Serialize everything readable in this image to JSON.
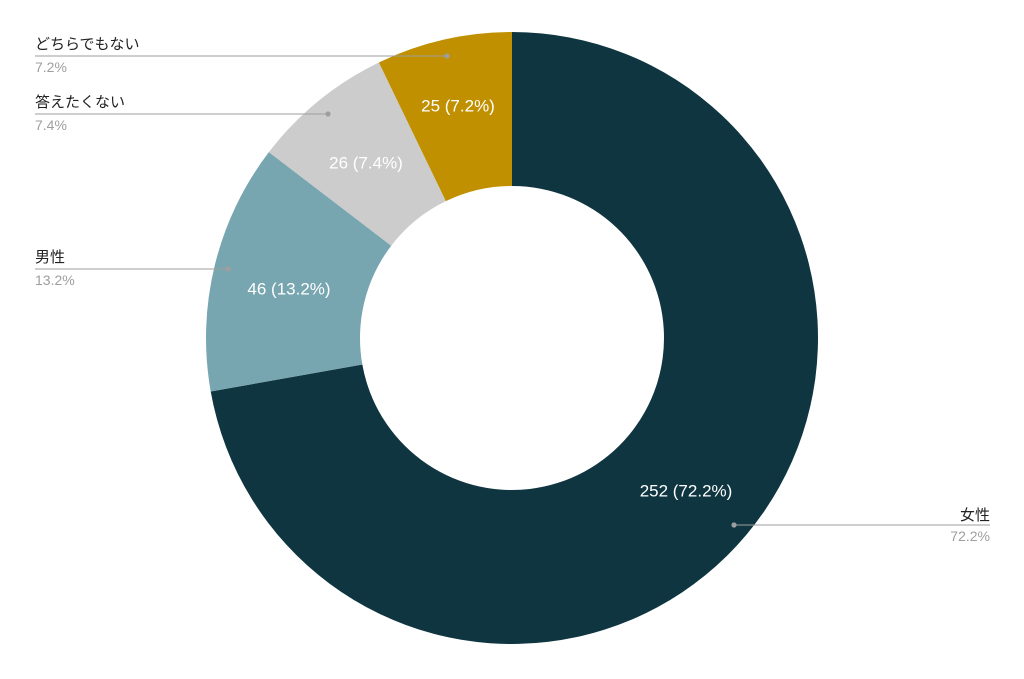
{
  "chart_data": {
    "type": "pie",
    "donut": true,
    "title": "",
    "legend": "callouts",
    "slices": [
      {
        "name": "女性",
        "value": 252,
        "percent": "72.2%",
        "label": "252 (72.2%)",
        "color": "#0f3640"
      },
      {
        "name": "男性",
        "value": 46,
        "percent": "13.2%",
        "label": "46 (13.2%)",
        "color": "#77a6b0"
      },
      {
        "name": "答えたくない",
        "value": 26,
        "percent": "7.4%",
        "label": "26 (7.4%)",
        "color": "#cccccc"
      },
      {
        "name": "どちらでもない",
        "value": 25,
        "percent": "7.2%",
        "label": "25 (7.2%)",
        "color": "#c09000"
      }
    ]
  }
}
